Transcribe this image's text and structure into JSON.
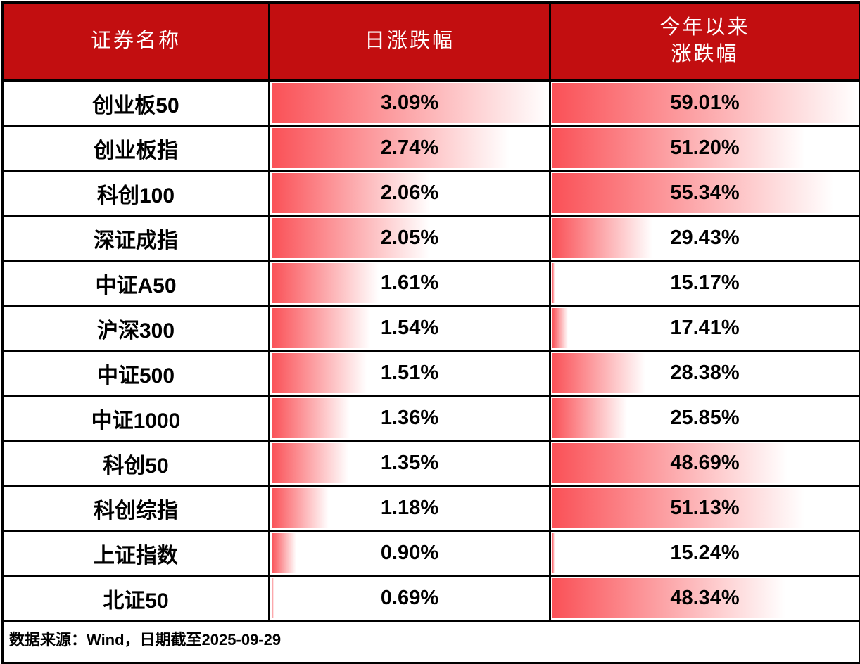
{
  "colors": {
    "header_bg": "#C20E10",
    "header_text": "#FFFFFF",
    "body_text": "#000000",
    "border": "#000000",
    "databar_start": "#FA5157",
    "databar_end": "#FFFFFF"
  },
  "header": {
    "col1": "证券名称",
    "col2": "日涨跌幅",
    "col3_line1": "今年以来",
    "col3_line2": "涨跌幅"
  },
  "footer": {
    "note": "数据来源：Wind，日期截至2025-09-29"
  },
  "chart_data": {
    "type": "table",
    "title": "",
    "columns": [
      "证券名称",
      "日涨跌幅",
      "今年以来涨跌幅"
    ],
    "rows": [
      {
        "name": "创业板50",
        "daily_change_pct": 3.09,
        "ytd_change_pct": 59.01
      },
      {
        "name": "创业板指",
        "daily_change_pct": 2.74,
        "ytd_change_pct": 51.2
      },
      {
        "name": "科创100",
        "daily_change_pct": 2.06,
        "ytd_change_pct": 55.34
      },
      {
        "name": "深证成指",
        "daily_change_pct": 2.05,
        "ytd_change_pct": 29.43
      },
      {
        "name": "中证A50",
        "daily_change_pct": 1.61,
        "ytd_change_pct": 15.17
      },
      {
        "name": "沪深300",
        "daily_change_pct": 1.54,
        "ytd_change_pct": 17.41
      },
      {
        "name": "中证500",
        "daily_change_pct": 1.51,
        "ytd_change_pct": 28.38
      },
      {
        "name": "中证1000",
        "daily_change_pct": 1.36,
        "ytd_change_pct": 25.85
      },
      {
        "name": "科创50",
        "daily_change_pct": 1.35,
        "ytd_change_pct": 48.69
      },
      {
        "name": "科创综指",
        "daily_change_pct": 1.18,
        "ytd_change_pct": 51.13
      },
      {
        "name": "上证指数",
        "daily_change_pct": 0.9,
        "ytd_change_pct": 15.24
      },
      {
        "name": "北证50",
        "daily_change_pct": 0.69,
        "ytd_change_pct": 48.34
      }
    ],
    "databar_scales": {
      "daily": {
        "min": 0.69,
        "max": 3.09
      },
      "ytd": {
        "min": 15.17,
        "max": 59.01
      }
    },
    "value_format": "0.00%",
    "databar_style": "gradient-red-to-white, length scaled min-to-max per column",
    "source_note": "数据来源：Wind，日期截至2025-09-29"
  }
}
